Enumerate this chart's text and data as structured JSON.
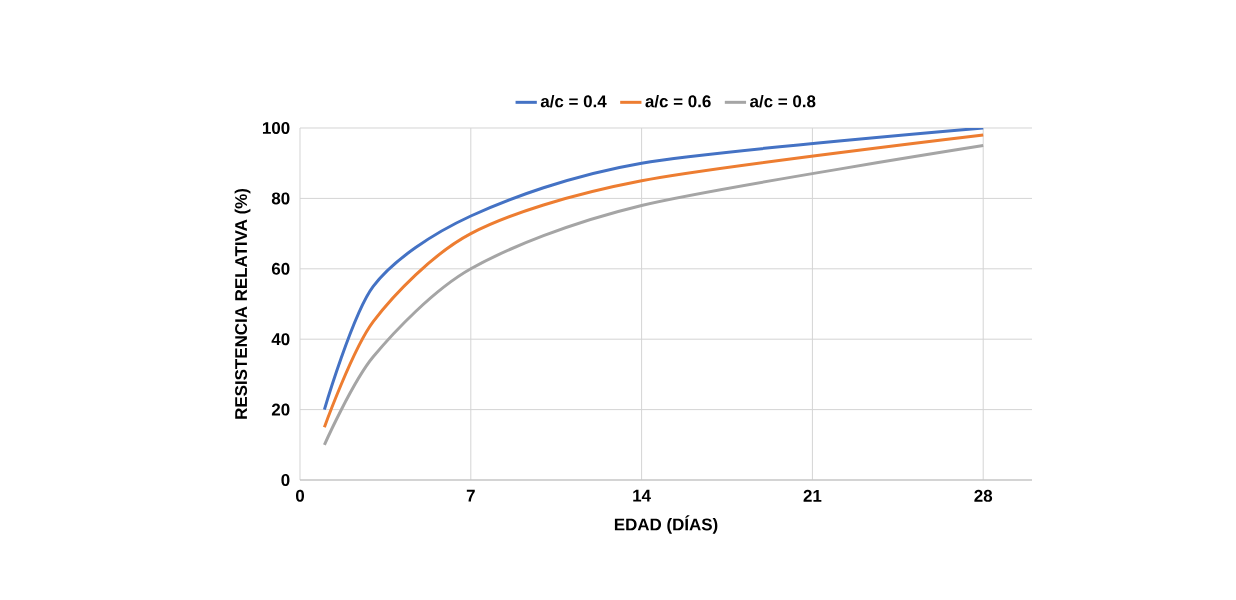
{
  "chart_data": {
    "type": "line",
    "xlabel": "EDAD (DÍAS)",
    "ylabel": "RESISTENCIA RELATIVA (%)",
    "x": [
      1,
      3,
      7,
      14,
      28
    ],
    "series": [
      {
        "name": "a/c = 0.4",
        "color": "#4472c4",
        "values": [
          20,
          55,
          75,
          90,
          100
        ]
      },
      {
        "name": "a/c = 0.6",
        "color": "#ed7d31",
        "values": [
          15,
          45,
          70,
          85,
          98
        ]
      },
      {
        "name": "a/c = 0.8",
        "color": "#a5a5a5",
        "values": [
          10,
          35,
          60,
          78,
          95
        ]
      }
    ],
    "xlim": [
      0,
      30
    ],
    "xticks": [
      0,
      7,
      14,
      21,
      28
    ],
    "ylim": [
      0,
      100
    ],
    "yticks": [
      0,
      20,
      40,
      60,
      80,
      100
    ],
    "grid": true,
    "legend": "top",
    "marker": "none",
    "line_style": "solid"
  }
}
